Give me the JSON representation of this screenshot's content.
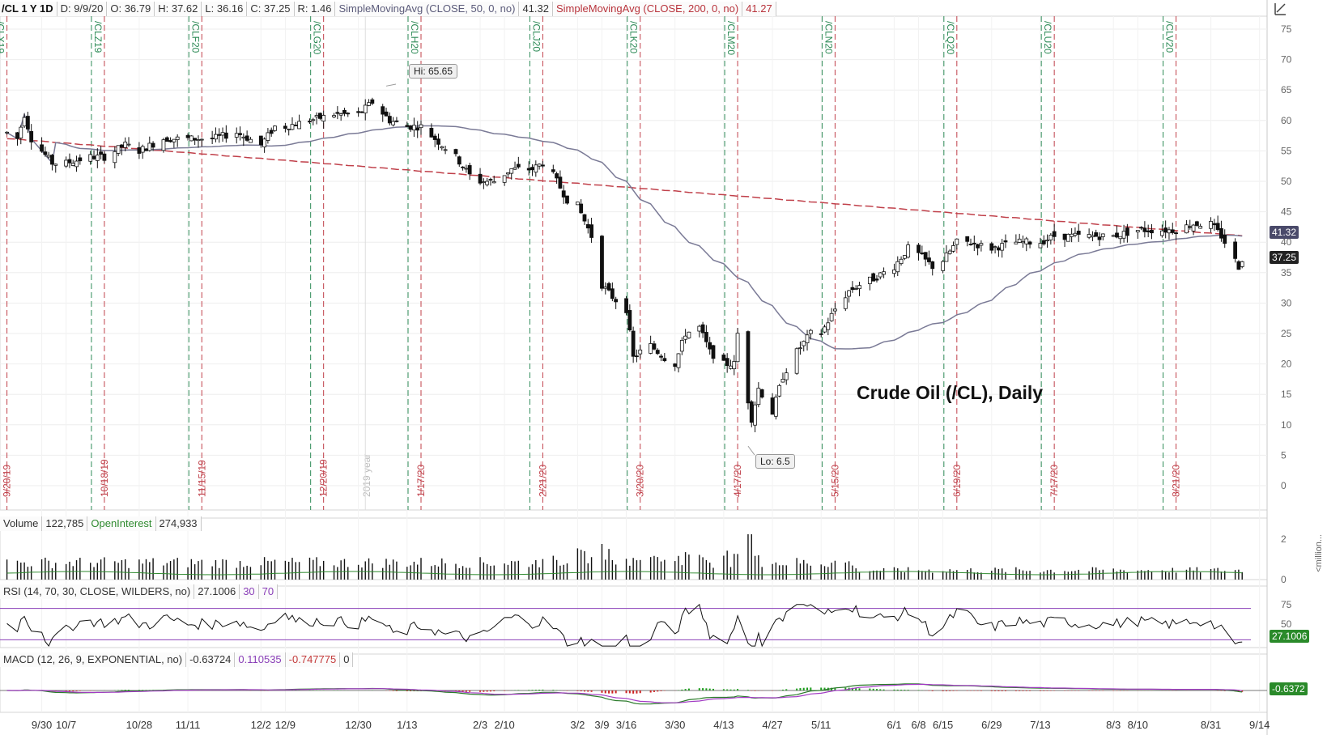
{
  "header": {
    "symbol": "/CL 1 Y 1D",
    "date": "D: 9/9/20",
    "open": "O: 36.79",
    "high": "H: 37.62",
    "low": "L: 36.16",
    "close": "C: 37.25",
    "range": "R: 1.46",
    "sma50_label": "SimpleMovingAvg (CLOSE, 50, 0, no)",
    "sma50_value": "41.32",
    "sma200_label": "SimpleMovingAvg (CLOSE, 200, 0, no)",
    "sma200_value": "41.27"
  },
  "volume_header": {
    "label": "Volume",
    "value": "122,785",
    "oi_label": "OpenInterest",
    "oi_value": "274,933"
  },
  "rsi_header": {
    "label": "RSI (14, 70, 30, CLOSE, WILDERS, no)",
    "value": "27.1006",
    "lower": "30",
    "upper": "70"
  },
  "macd_header": {
    "label": "MACD (12, 26, 9, EXPONENTIAL, no)",
    "value": "-0.63724",
    "avg": "0.110535",
    "diff": "-0.747775",
    "zero": "0"
  },
  "annotations": {
    "title": "Crude Oil (/CL), Daily",
    "hi": "Hi: 65.65",
    "lo": "Lo: 6.5",
    "year_marker": "2019 year"
  },
  "price_tags": {
    "sma50": "41.32",
    "last": "37.25",
    "rsi": "27.1006",
    "macd": "-0.6372"
  },
  "volume_unit": "<million...",
  "colors": {
    "bull": "#ffffff",
    "bear": "#111111",
    "sma50": "#7a7a96",
    "sma200": "#c0404a",
    "expiry_line": "#2e8b57",
    "event_line": "#c0404a",
    "rsi_line": "#111111",
    "rsi_oversold": "#2f8a2f",
    "macd_line": "#2a7a2a",
    "macd_avg": "#a23bc4",
    "hist_pos": "#1f9e1f",
    "hist_neg": "#cc2222",
    "price_tag_sma": "#4a4a6a",
    "price_tag_last": "#222222",
    "price_tag_rsi": "#2a8a2a",
    "price_tag_macd": "#2a8a2a"
  },
  "chart_data": {
    "type": "candlestick",
    "title": "Crude Oil (/CL), Daily",
    "y_axis": {
      "min": 0,
      "max": 75,
      "ticks": [
        0,
        5,
        10,
        15,
        20,
        25,
        30,
        35,
        40,
        45,
        50,
        55,
        60,
        65,
        70,
        75
      ]
    },
    "x_axis_labels": [
      "9/30",
      "10/7",
      "10/28",
      "11/11",
      "12/2",
      "12/9",
      "12/30",
      "1/13",
      "2/3",
      "2/10",
      "3/2",
      "3/9",
      "3/16",
      "3/30",
      "4/13",
      "4/27",
      "5/11",
      "6/1",
      "6/8",
      "6/15",
      "6/29",
      "7/13",
      "8/3",
      "8/10",
      "8/31",
      "9/14"
    ],
    "contract_labels": [
      "/CLX19",
      "/CLZ19",
      "/CLF20",
      "/CLG20",
      "/CLH20",
      "/CLJ20",
      "/CLK20",
      "/CLM20",
      "/CLN20",
      "/CLQ20",
      "/CLU20",
      "/CLV20"
    ],
    "expiry_labels": [
      "9/20/19",
      "10/18/19",
      "11/15/19",
      "12/20/19",
      "1/17/20",
      "2/21/20",
      "3/20/20",
      "4/17/20",
      "5/15/20",
      "6/19/20",
      "7/17/20",
      "8/21/20"
    ],
    "price_keypoints": [
      [
        "9/20/19",
        58
      ],
      [
        "9/23/19",
        57
      ],
      [
        "9/25/19",
        61
      ],
      [
        "9/27/19",
        57
      ],
      [
        "9/30/19",
        55
      ],
      [
        "10/3/19",
        53
      ],
      [
        "10/7/19",
        53
      ],
      [
        "10/14/19",
        54
      ],
      [
        "10/18/19",
        54
      ],
      [
        "10/24/19",
        56
      ],
      [
        "10/28/19",
        55
      ],
      [
        "11/4/19",
        57
      ],
      [
        "11/11/19",
        57
      ],
      [
        "11/18/19",
        57
      ],
      [
        "11/25/19",
        58
      ],
      [
        "12/2/19",
        56
      ],
      [
        "12/6/19",
        59
      ],
      [
        "12/9/19",
        59
      ],
      [
        "12/16/19",
        60
      ],
      [
        "12/23/19",
        61
      ],
      [
        "12/30/19",
        61
      ],
      [
        "1/3/20",
        63
      ],
      [
        "1/8/20",
        60
      ],
      [
        "1/13/20",
        59
      ],
      [
        "1/17/20",
        59
      ],
      [
        "1/21/20",
        57
      ],
      [
        "1/27/20",
        54
      ],
      [
        "1/31/20",
        51
      ],
      [
        "2/3/20",
        50
      ],
      [
        "2/7/20",
        50
      ],
      [
        "2/12/20",
        52
      ],
      [
        "2/18/20",
        52
      ],
      [
        "2/21/20",
        53
      ],
      [
        "2/24/20",
        51
      ],
      [
        "2/28/20",
        47
      ],
      [
        "3/2/20",
        46
      ],
      [
        "3/6/20",
        41
      ],
      [
        "3/9/20",
        33
      ],
      [
        "3/12/20",
        31
      ],
      [
        "3/16/20",
        29
      ],
      [
        "3/18/20",
        21
      ],
      [
        "3/20/20",
        22
      ],
      [
        "3/23/20",
        23
      ],
      [
        "3/27/20",
        21
      ],
      [
        "3/30/20",
        20
      ],
      [
        "4/2/20",
        25
      ],
      [
        "4/6/20",
        26
      ],
      [
        "4/9/20",
        22
      ],
      [
        "4/13/20",
        20
      ],
      [
        "4/16/20",
        20
      ],
      [
        "4/17/20",
        25
      ],
      [
        "4/20/20",
        14
      ],
      [
        "4/21/20",
        11
      ],
      [
        "4/23/20",
        16
      ],
      [
        "4/27/20",
        12
      ],
      [
        "4/30/20",
        18
      ],
      [
        "5/4/20",
        22
      ],
      [
        "5/8/20",
        25
      ],
      [
        "5/11/20",
        25
      ],
      [
        "5/15/20",
        29
      ],
      [
        "5/19/20",
        32
      ],
      [
        "5/22/20",
        33
      ],
      [
        "5/26/20",
        34
      ],
      [
        "6/1/20",
        36
      ],
      [
        "6/5/20",
        39
      ],
      [
        "6/8/20",
        38
      ],
      [
        "6/12/20",
        36
      ],
      [
        "6/15/20",
        37
      ],
      [
        "6/19/20",
        40
      ],
      [
        "6/22/20",
        40
      ],
      [
        "6/29/20",
        39
      ],
      [
        "7/6/20",
        40
      ],
      [
        "7/13/20",
        40
      ],
      [
        "7/17/20",
        41
      ],
      [
        "7/24/20",
        41
      ],
      [
        "7/31/20",
        41
      ],
      [
        "8/3/20",
        41
      ],
      [
        "8/10/20",
        42
      ],
      [
        "8/17/20",
        42
      ],
      [
        "8/21/20",
        42
      ],
      [
        "8/26/20",
        43
      ],
      [
        "8/31/20",
        43
      ],
      [
        "9/3/20",
        41
      ],
      [
        "9/8/20",
        36
      ],
      [
        "9/9/20",
        37.25
      ]
    ],
    "hi": 65.65,
    "lo": 6.5,
    "last": 37.25,
    "sma50_last": 41.32,
    "sma200_last": 41.27,
    "volume_axis": {
      "ticks": [
        0,
        2
      ],
      "unit": "million"
    },
    "rsi_axis": {
      "ticks": [
        50,
        75
      ]
    },
    "rsi_levels": {
      "upper": 70,
      "lower": 30
    },
    "rsi_last": 27.1006,
    "macd_last": -0.63724
  }
}
